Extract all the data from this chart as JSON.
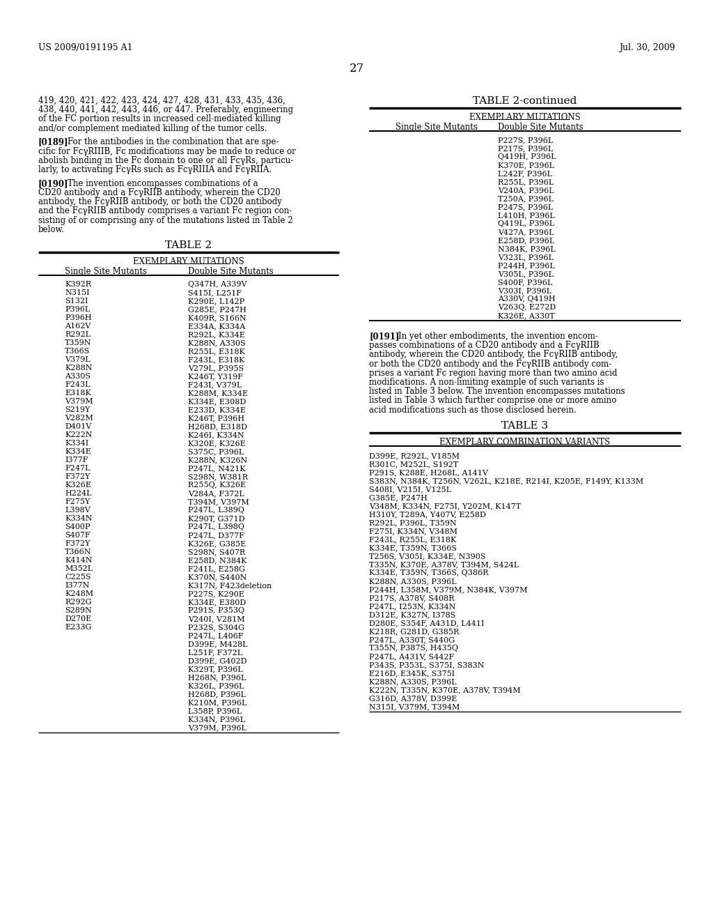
{
  "header_left": "US 2009/0191195 A1",
  "header_right": "Jul. 30, 2009",
  "page_number": "27",
  "left_text_blocks": [
    "419, 420, 421, 422, 423, 424, 427, 428, 431, 433, 435, 436,",
    "438, 440, 441, 442, 443, 446, or 447. Preferably, engineering",
    "of the FC portion results in increased cell-mediated killing",
    "and/or complement mediated killing of the tumor cells.",
    "",
    "[0189]",
    "For the antibodies in the combination that are spe-",
    "cific for FcγRIIIB, Fc modifications may be made to reduce or",
    "abolish binding in the Fc domain to one or all FcγRs, particu-",
    "larly, to activating FcγRs such as FcγRIIIA and FcγRIIA.",
    "",
    "[0190]",
    "The invention encompasses combinations of a",
    "CD20 antibody and a FcγRIIB antibody, wherein the CD20",
    "antibody, the FcγRIIB antibody, or both the CD20 antibody",
    "and the FcγRIIB antibody comprises a variant Fc region con-",
    "sisting of or comprising any of the mutations listed in Table 2",
    "below."
  ],
  "table2_title": "TABLE 2",
  "table2_subtitle": "EXEMPLARY MUTATIONS",
  "table2_col1_header": "Single Site Mutants",
  "table2_col2_header": "Double Site Mutants",
  "table2_rows": [
    [
      "K392R",
      "Q347H, A339V"
    ],
    [
      "N315I",
      "S415I, L251F"
    ],
    [
      "S132I",
      "K290E, L142P"
    ],
    [
      "P396L",
      "G285E, P247H"
    ],
    [
      "P396H",
      "K409R, S166N"
    ],
    [
      "A162V",
      "E334A, K334A"
    ],
    [
      "R292L",
      "R292L, K334E"
    ],
    [
      "T359N",
      "K288N, A330S"
    ],
    [
      "T366S",
      "R255L, E318K"
    ],
    [
      "V379L",
      "F243L, E318K"
    ],
    [
      "K288N",
      "V279L, P395S"
    ],
    [
      "A330S",
      "K246T, Y319F"
    ],
    [
      "F243L",
      "F243I, V379L"
    ],
    [
      "E318K",
      "K288M, K334E"
    ],
    [
      "V379M",
      "K334E, E308D"
    ],
    [
      "S219Y",
      "E233D, K334E"
    ],
    [
      "V282M",
      "K246T, P396H"
    ],
    [
      "D401V",
      "H268D, E318D"
    ],
    [
      "K222N",
      "K246I, K334N"
    ],
    [
      "K334I",
      "K320E, K326E"
    ],
    [
      "K334E",
      "S375C, P396L"
    ],
    [
      "I377F",
      "K288N, K326N"
    ],
    [
      "F247L",
      "P247L, N421K"
    ],
    [
      "F372Y",
      "S298N, W381R"
    ],
    [
      "K326E",
      "R255Q, K326E"
    ],
    [
      "H224L",
      "V284A, F372L"
    ],
    [
      "F275Y",
      "T394M, V397M"
    ],
    [
      "L398V",
      "P247L, L389Q"
    ],
    [
      "K334N",
      "K290T, G371D"
    ],
    [
      "S400P",
      "P247L, L398Q"
    ],
    [
      "S407F",
      "P247L, D377F"
    ],
    [
      "F372Y",
      "K326E, G385E"
    ],
    [
      "T366N",
      "S298N, S407R"
    ],
    [
      "K414N",
      "E258D, N384K"
    ],
    [
      "M352L",
      "F241L, E258G"
    ],
    [
      "C225S",
      "K370N, S440N"
    ],
    [
      "I377N",
      "K317N, F423deletion"
    ],
    [
      "K248M",
      "P227S, K290E"
    ],
    [
      "R292G",
      "K334E, E380D"
    ],
    [
      "S289N",
      "P291S, P353Q"
    ],
    [
      "D270E",
      "V240I, V281M"
    ],
    [
      "E233G",
      "P232S, S304G"
    ],
    [
      "",
      "P247L, L406F"
    ],
    [
      "",
      "D399E, M428L"
    ],
    [
      "",
      "L251F, F372L"
    ],
    [
      "",
      "D399E, G402D"
    ],
    [
      "",
      "K329T, P396L"
    ],
    [
      "",
      "H268N, P396L"
    ],
    [
      "",
      "K326L, P396L"
    ],
    [
      "",
      "H268D, P396L"
    ],
    [
      "",
      "K210M, P396L"
    ],
    [
      "",
      "L358P, P396L"
    ],
    [
      "",
      "K334N, P396L"
    ],
    [
      "",
      "V379M, P396L"
    ]
  ],
  "table2cont_title": "TABLE 2-continued",
  "table2cont_subtitle": "EXEMPLARY MUTATIONS",
  "table2cont_col1_header": "Single Site Mutants",
  "table2cont_col2_header": "Double Site Mutants",
  "table2cont_rows": [
    [
      "",
      "P227S, P396L"
    ],
    [
      "",
      "P217S, P396L"
    ],
    [
      "",
      "Q419H, P396L"
    ],
    [
      "",
      "K370E, P396L"
    ],
    [
      "",
      "L242F, P396L"
    ],
    [
      "",
      "R255L, P396L"
    ],
    [
      "",
      "V240A, P396L"
    ],
    [
      "",
      "T250A, P396L"
    ],
    [
      "",
      "P247S, P396L"
    ],
    [
      "",
      "L410H, P396L"
    ],
    [
      "",
      "Q419L, P396L"
    ],
    [
      "",
      "V427A, P396L"
    ],
    [
      "",
      "E258D, P396L"
    ],
    [
      "",
      "N384K, P396L"
    ],
    [
      "",
      "V323L, P396L"
    ],
    [
      "",
      "P244H, P396L"
    ],
    [
      "",
      "V305L, P396L"
    ],
    [
      "",
      "S400F, P396L"
    ],
    [
      "",
      "V303I, P396L"
    ],
    [
      "",
      "A330V, Q419H"
    ],
    [
      "",
      "V263Q, E272D"
    ],
    [
      "",
      "K326E, A330T"
    ]
  ],
  "para_0191_lines": [
    "[0191]   In yet other embodiments, the invention encom-",
    "passes combinations of a CD20 antibody and a FcγRIIB",
    "antibody, wherein the CD20 antibody, the FcγRIIB antibody,",
    "or both the CD20 antibody and the FcγRIIB antibody com-",
    "prises a variant Fc region having more than two amino acid",
    "modifications. A non-limiting example of such variants is",
    "listed in Table 3 below. The invention encompasses mutations",
    "listed in Table 3 which further comprise one or more amino",
    "acid modifications such as those disclosed herein."
  ],
  "table3_title": "TABLE 3",
  "table3_subtitle": "EXEMPLARY COMBINATION VARIANTS",
  "table3_rows": [
    "D399E, R292L, V185M",
    "R301C, M252L, S192T",
    "P291S, K288E, H268L, A141V",
    "S383N, N384K, T256N, V262L, K218E, R214I, K205E, F149Y, K133M",
    "S408I, V215I, V125L",
    "G385E, P247H",
    "V348M, K334N, F275I, Y202M, K147T",
    "H310Y, T289A, Y407V, E258D",
    "R292L, P396L, T359N",
    "F275I, K334N, V348M",
    "F243L, R255L, E318K",
    "K334E, T359N, T366S",
    "T256S, V305I, K334E, N390S",
    "T335N, K370E, A378V, T394M, S424L",
    "K334E, T359N, T366S, Q386R",
    "K288N, A330S, P396L",
    "P244H, L358M, V379M, N384K, V397M",
    "P217S, A378V, S408R",
    "P247L, I253N, K334N",
    "D312E, K327N, I378S",
    "D280E, S354F, A431D, L441I",
    "K218R, G281D, G385R",
    "P247L, A330T, S440G",
    "T355N, P387S, H435Q",
    "P247L, A431V, S442F",
    "P343S, P353L, S375I, S383N",
    "E216D, E345K, S375I",
    "K288N, A330S, P396L",
    "K222N, T335N, K370E, A378V, T394M",
    "G316D, A378V, D399E",
    "N315I, V379M, T394M"
  ],
  "bg_color": "#ffffff",
  "text_color": "#000000"
}
